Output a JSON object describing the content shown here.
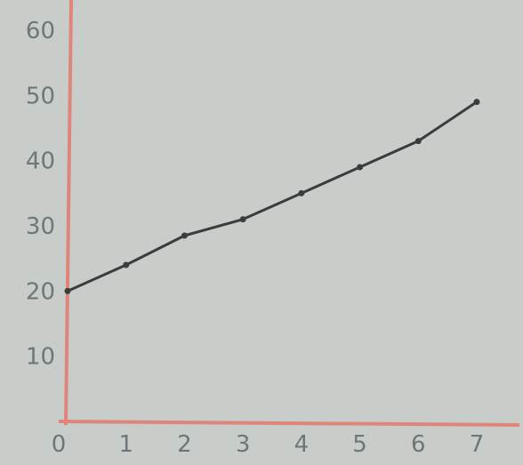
{
  "chart_data": {
    "type": "line",
    "title": "",
    "xlabel": "",
    "ylabel": "",
    "x": [
      0,
      1,
      2,
      3,
      4,
      5,
      6,
      7
    ],
    "series": [
      {
        "values": [
          20,
          24,
          28.5,
          31,
          35,
          39,
          43,
          49
        ]
      }
    ],
    "xlim": [
      0,
      7
    ],
    "ylim": [
      0,
      60
    ],
    "x_ticks": [
      "0",
      "1",
      "2",
      "3",
      "4",
      "5",
      "6",
      "7"
    ],
    "y_ticks": [
      "10",
      "20",
      "30",
      "40",
      "50",
      "60"
    ],
    "grid": false,
    "colors": {
      "axis": "#e0857a",
      "line": "#3a3d3f",
      "text": "#6f767a",
      "background": "#c9cdc9"
    }
  }
}
